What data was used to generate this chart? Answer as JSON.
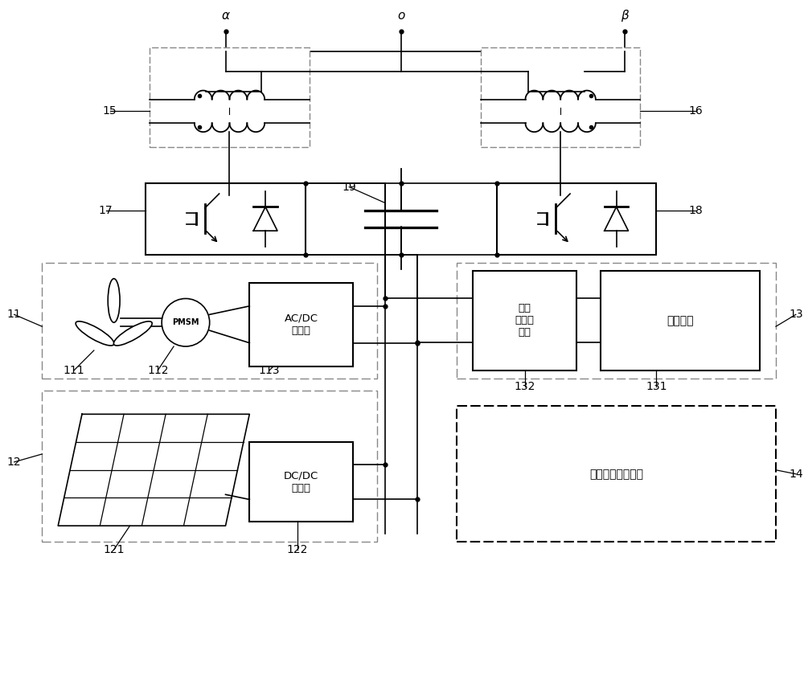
{
  "bg_color": "#ffffff",
  "line_color": "#000000",
  "gray_color": "#888888",
  "labels": {
    "alpha": "α",
    "o": "o",
    "beta": "β",
    "15": "15",
    "16": "16",
    "17": "17",
    "18": "18",
    "19": "19",
    "11": "11",
    "12": "12",
    "13": "13",
    "14": "14",
    "111": "111",
    "112": "112",
    "113": "113",
    "121": "121",
    "122": "122",
    "131": "131",
    "132": "132",
    "acdc": "AC/DC\n变换器",
    "dcdc": "DC/DC\n变换器",
    "bidir": "双向\n能量变\n换器",
    "storage": "储能装置",
    "pmsm": "PMSM",
    "control": "综合能量控制部分"
  }
}
